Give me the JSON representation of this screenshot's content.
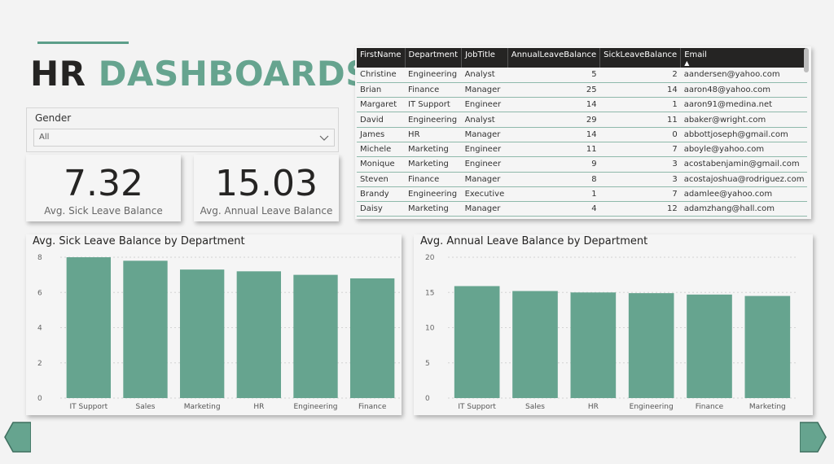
{
  "header": {
    "title_part1": "HR",
    "title_part2": "DASHBOARDS"
  },
  "slicer": {
    "label": "Gender",
    "value": "All"
  },
  "cards": [
    {
      "value": "7.32",
      "caption": "Avg. Sick Leave Balance"
    },
    {
      "value": "15.03",
      "caption": "Avg. Annual Leave Balance"
    }
  ],
  "table": {
    "columns": [
      "FirstName",
      "Department",
      "JobTitle",
      "AnnualLeaveBalance",
      "SickLeaveBalance",
      "Email"
    ],
    "sorted_column": "Email",
    "rows": [
      [
        "Christine",
        "Engineering",
        "Analyst",
        "5",
        "2",
        "aandersen@yahoo.com"
      ],
      [
        "Brian",
        "Finance",
        "Manager",
        "25",
        "14",
        "aaron48@yahoo.com"
      ],
      [
        "Margaret",
        "IT Support",
        "Engineer",
        "14",
        "1",
        "aaron91@medina.net"
      ],
      [
        "David",
        "Engineering",
        "Analyst",
        "29",
        "11",
        "abaker@wright.com"
      ],
      [
        "James",
        "HR",
        "Manager",
        "14",
        "0",
        "abbottjoseph@gmail.com"
      ],
      [
        "Michele",
        "Marketing",
        "Engineer",
        "11",
        "7",
        "aboyle@yahoo.com"
      ],
      [
        "Monique",
        "Marketing",
        "Engineer",
        "9",
        "3",
        "acostabenjamin@gmail.com"
      ],
      [
        "Steven",
        "Finance",
        "Manager",
        "8",
        "3",
        "acostajoshua@rodriguez.com"
      ],
      [
        "Brandy",
        "Engineering",
        "Executive",
        "1",
        "7",
        "adamlee@yahoo.com"
      ],
      [
        "Daisy",
        "Marketing",
        "Manager",
        "4",
        "12",
        "adamzhang@hall.com"
      ]
    ]
  },
  "colors": {
    "accent": "#66a48f",
    "dark": "#252423",
    "background": "#f3f3f3"
  },
  "chart_data": [
    {
      "type": "bar",
      "title": "Avg. Sick Leave Balance by Department",
      "categories": [
        "IT Support",
        "Sales",
        "Marketing",
        "HR",
        "Engineering",
        "Finance"
      ],
      "values": [
        8.0,
        7.8,
        7.3,
        7.2,
        7.0,
        6.8
      ],
      "yticks": [
        0,
        2,
        4,
        6,
        8
      ],
      "ylim": [
        0,
        8
      ],
      "grid": true,
      "color": "#66a48f"
    },
    {
      "type": "bar",
      "title": "Avg. Annual Leave Balance by Department",
      "categories": [
        "IT Support",
        "Sales",
        "HR",
        "Engineering",
        "Finance",
        "Marketing"
      ],
      "values": [
        15.9,
        15.2,
        15.0,
        14.9,
        14.7,
        14.5
      ],
      "yticks": [
        0,
        5,
        10,
        15,
        20
      ],
      "ylim": [
        0,
        20
      ],
      "grid": true,
      "color": "#66a48f"
    }
  ],
  "nav": {
    "prev_icon": "arrow-left-icon",
    "next_icon": "arrow-right-icon"
  }
}
